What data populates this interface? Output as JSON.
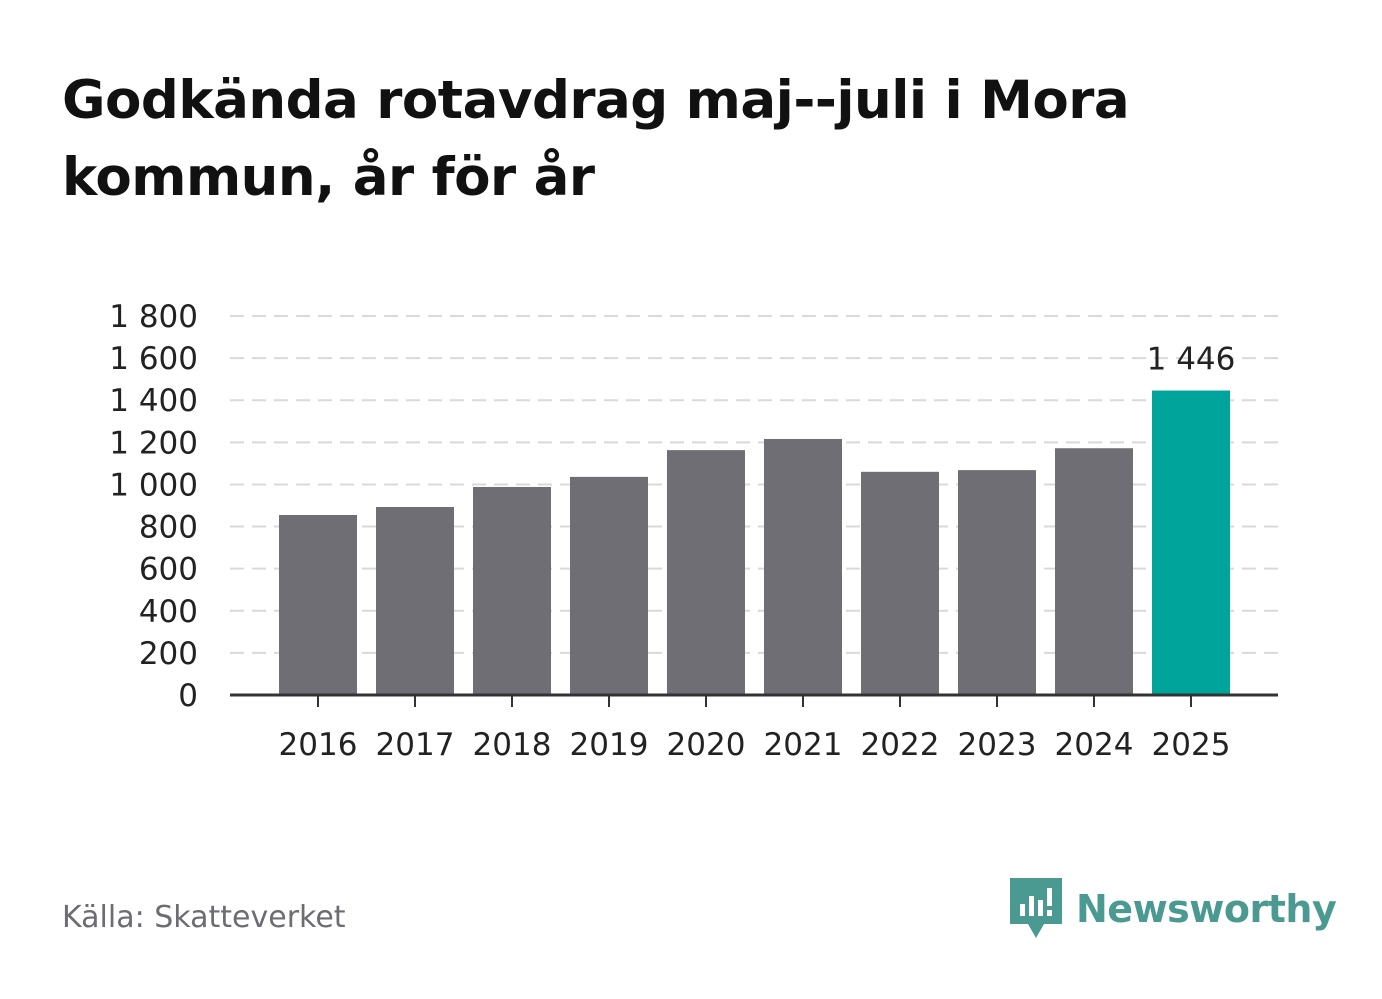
{
  "title": "Godkända rotavdrag maj--juli i Mora kommun, år för år",
  "source": "Källa: Skatteverket",
  "brand": {
    "name": "Newsworthy",
    "icon": "newsworthy-logo-icon",
    "color": "#4a9a92"
  },
  "colors": {
    "bar": "#6f6e75",
    "highlight": "#00a49a",
    "grid": "#d9d9d9",
    "axis": "#333333"
  },
  "chart_data": {
    "type": "bar",
    "title": "Godkända rotavdrag maj--juli i Mora kommun, år för år",
    "categories": [
      "2016",
      "2017",
      "2018",
      "2019",
      "2020",
      "2021",
      "2022",
      "2023",
      "2024",
      "2025"
    ],
    "values": [
      855,
      893,
      988,
      1036,
      1163,
      1216,
      1060,
      1068,
      1172,
      1446
    ],
    "highlight_index": 9,
    "data_labels": [
      {
        "index": 9,
        "text": "1 446"
      }
    ],
    "ylim": [
      0,
      1800
    ],
    "yticks": [
      0,
      200,
      400,
      600,
      800,
      1000,
      1200,
      1400,
      1600,
      1800
    ],
    "ytick_labels": [
      "0",
      "200",
      "400",
      "600",
      "800",
      "1 000",
      "1 200",
      "1 400",
      "1 600",
      "1 800"
    ],
    "grid": true,
    "xlabel": "",
    "ylabel": ""
  }
}
